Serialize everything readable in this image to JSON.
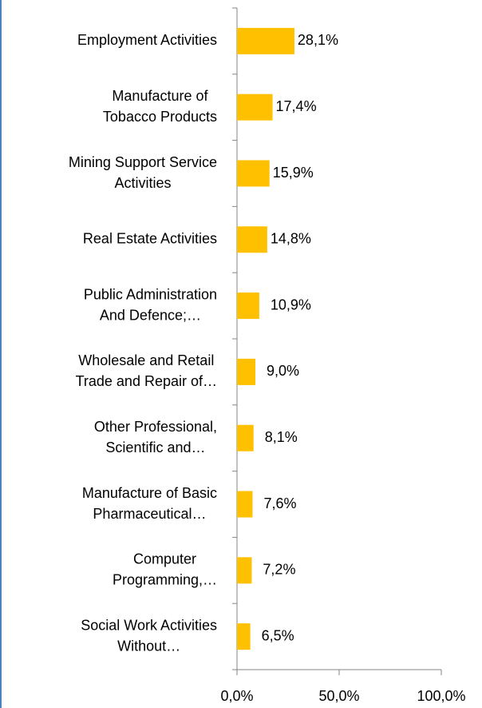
{
  "chart_data": {
    "type": "bar",
    "orientation": "horizontal",
    "color": "#ffc000",
    "categories": [
      [
        "Employment Activities"
      ],
      [
        "Manufacture of",
        "Tobacco Products"
      ],
      [
        "Mining Support Service",
        "Activities"
      ],
      [
        "Real Estate Activities"
      ],
      [
        "Public Administration",
        "And Defence;…"
      ],
      [
        "Wholesale and Retail",
        "Trade and Repair of…"
      ],
      [
        "Other Professional,",
        "Scientific and…"
      ],
      [
        "Manufacture of Basic",
        "Pharmaceutical…"
      ],
      [
        "Computer",
        "Programming,…"
      ],
      [
        "Social Work Activities",
        "Without…"
      ]
    ],
    "values": [
      28.1,
      17.4,
      15.9,
      14.8,
      10.9,
      9.0,
      8.1,
      7.6,
      7.2,
      6.5
    ],
    "value_labels": [
      "28,1%",
      "17,4%",
      "15,9%",
      "14,8%",
      "10,9%",
      "9,0%",
      "8,1%",
      "7,6%",
      "7,2%",
      "6,5%"
    ],
    "xlim": [
      0,
      100
    ],
    "xticks": [
      {
        "value": 0,
        "label": "0,0%"
      },
      {
        "value": 50,
        "label": "50,0%"
      },
      {
        "value": 100,
        "label": "100,0%"
      }
    ]
  }
}
